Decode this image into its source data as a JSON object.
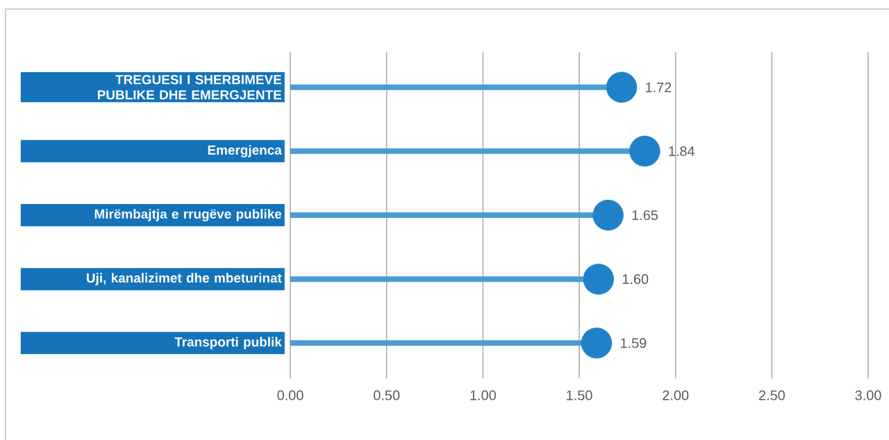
{
  "chart_data": {
    "type": "lollipop",
    "orientation": "horizontal",
    "categories": [
      "TREGUESI I SHERBIMEVE PUBLIKE DHE EMERGJENTE",
      "Emergjenca",
      "Mirëmbajtja e rrugëve publike",
      "Uji, kanalizimet dhe mbeturinat",
      "Transporti publik"
    ],
    "series": [
      {
        "color": "#1f82c8",
        "values": [
          1.72,
          1.84,
          1.65,
          1.6,
          1.59
        ],
        "value_labels": [
          "1.72",
          "1.84",
          "1.65",
          "1.60",
          "1.59"
        ]
      }
    ],
    "xlim": [
      0,
      3
    ],
    "xticks": [
      {
        "value": 0,
        "label": "0.00"
      },
      {
        "value": 0.5,
        "label": "0.50"
      },
      {
        "value": 1,
        "label": "1.00"
      },
      {
        "value": 1.5,
        "label": "1.50"
      },
      {
        "value": 2,
        "label": "2.00"
      },
      {
        "value": 2.5,
        "label": "2.50"
      },
      {
        "value": 3,
        "label": "3.00"
      }
    ],
    "grid": "x",
    "marker": "circle"
  }
}
